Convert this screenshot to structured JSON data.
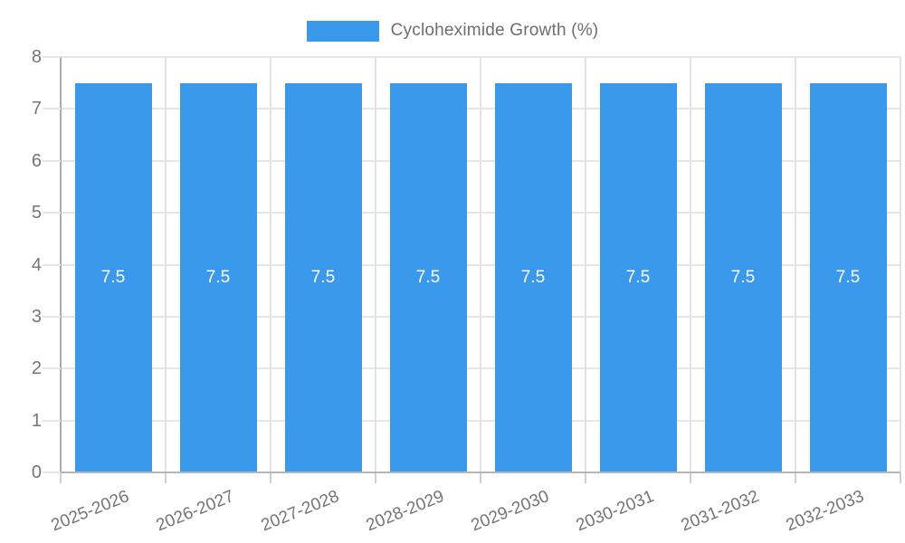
{
  "chart_data": {
    "type": "bar",
    "title": "",
    "legend_position": "top",
    "legend": [
      {
        "label": "Cycloheximide Growth (%)",
        "color": "#3b99ec"
      }
    ],
    "categories": [
      "2025-2026",
      "2026-2027",
      "2027-2028",
      "2028-2029",
      "2029-2030",
      "2030-2031",
      "2031-2032",
      "2032-2033"
    ],
    "series": [
      {
        "name": "Cycloheximide Growth (%)",
        "values": [
          7.5,
          7.5,
          7.5,
          7.5,
          7.5,
          7.5,
          7.5,
          7.5
        ],
        "bar_labels": [
          "7.5",
          "7.5",
          "7.5",
          "7.5",
          "7.5",
          "7.5",
          "7.5",
          "7.5"
        ]
      }
    ],
    "xlabel": "",
    "ylabel": "",
    "ylim": [
      0,
      8
    ],
    "yticks": [
      0,
      1,
      2,
      3,
      4,
      5,
      6,
      7,
      8
    ],
    "grid": true,
    "colors": {
      "bar": "#3b99ec",
      "bar_label_text": "#ffffff",
      "axis_text": "#757575",
      "legend_text": "#6e6e6e",
      "gridline": "#e6e6e6",
      "axis_line": "#b0b0b0",
      "background": "#ffffff"
    }
  }
}
